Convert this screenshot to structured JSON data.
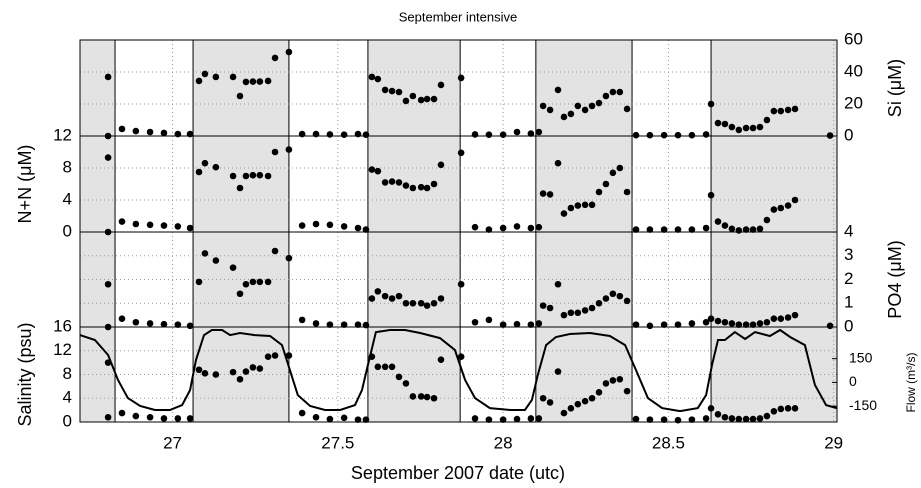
{
  "chart_data": {
    "type": "scatter",
    "title": "September intensive",
    "x_label": "September 2007 date (utc)",
    "xlim": [
      26.72,
      29.01
    ],
    "xticks": [
      27,
      27.5,
      28,
      28.5,
      29
    ],
    "grid": true,
    "color": "#000000",
    "shade_color": "#e3e3e3",
    "shaded_intervals": [
      [
        26.72,
        26.826
      ],
      [
        27.062,
        27.352
      ],
      [
        27.591,
        27.87
      ],
      [
        28.099,
        28.39
      ],
      [
        28.629,
        29.01
      ]
    ],
    "x": [
      26.805,
      26.805,
      26.847,
      26.889,
      26.932,
      26.974,
      27.016,
      27.053,
      27.08,
      27.098,
      27.131,
      27.183,
      27.204,
      27.222,
      27.243,
      27.264,
      27.289,
      27.31,
      27.352,
      27.392,
      27.434,
      27.476,
      27.519,
      27.561,
      27.585,
      27.603,
      27.621,
      27.643,
      27.664,
      27.685,
      27.706,
      27.727,
      27.752,
      27.77,
      27.791,
      27.812,
      27.873,
      27.915,
      27.957,
      28.0,
      28.042,
      28.084,
      28.108,
      28.121,
      28.142,
      28.166,
      28.184,
      28.205,
      28.226,
      28.248,
      28.269,
      28.29,
      28.311,
      28.332,
      28.353,
      28.375,
      28.402,
      28.444,
      28.487,
      28.529,
      28.571,
      28.614,
      28.629,
      28.65,
      28.671,
      28.692,
      28.713,
      28.735,
      28.756,
      28.777,
      28.798,
      28.819,
      28.84,
      28.862,
      28.883,
      28.989
    ],
    "panels": [
      {
        "y_label": "Si (μM)",
        "y_side": "right",
        "ylim": [
          0,
          60
        ],
        "yticks": [
          0,
          20,
          40,
          60
        ],
        "values": [
          36.9,
          0,
          4.4,
          3.1,
          2.5,
          1.9,
          1.2,
          1.2,
          34.4,
          38.8,
          36.9,
          36.9,
          25,
          33.8,
          34,
          34,
          34.4,
          48.8,
          52.5,
          1.2,
          1.2,
          1,
          0.8,
          1.2,
          0.8,
          36.9,
          35.6,
          28.8,
          28.1,
          27.5,
          21.9,
          25,
          22.5,
          23.1,
          23.1,
          31.9,
          36.3,
          1,
          0.8,
          0.8,
          2.5,
          1.5,
          2.5,
          18.8,
          16.3,
          28.8,
          11.9,
          13.8,
          18.8,
          16.3,
          18.8,
          20.6,
          25,
          27.5,
          27.5,
          16.9,
          0.5,
          0.5,
          0.5,
          0.5,
          0.5,
          1,
          20,
          8.1,
          7.5,
          5.6,
          3.8,
          5,
          5,
          5.6,
          10,
          15.6,
          15.6,
          16.3,
          16.9,
          0.3
        ]
      },
      {
        "y_label": "N+N (μM)",
        "y_side": "left",
        "ylim": [
          0,
          12
        ],
        "yticks": [
          0,
          4,
          8,
          12
        ],
        "values": [
          9.3,
          0,
          1.3,
          1,
          0.9,
          0.8,
          0.7,
          0.5,
          7.5,
          8.6,
          8.1,
          7,
          5.5,
          7,
          7.1,
          7.1,
          7,
          10,
          10.3,
          0.8,
          1,
          0.9,
          0.7,
          0.5,
          0.3,
          7.8,
          7.6,
          6.2,
          6.3,
          6.2,
          5.8,
          5.5,
          5.6,
          5.5,
          6,
          8.4,
          9.9,
          0.6,
          0.3,
          0.5,
          0.7,
          0.5,
          0.6,
          4.8,
          4.7,
          8.6,
          2.3,
          3,
          3.3,
          3.4,
          3.4,
          5,
          6,
          7.4,
          8,
          5,
          0.3,
          0.3,
          0.3,
          0.3,
          0.3,
          0.5,
          4.6,
          1.3,
          0.8,
          0.4,
          0.2,
          0.3,
          0.3,
          0.4,
          1.5,
          2.8,
          3,
          3.3,
          4,
          null
        ]
      },
      {
        "y_label": "PO4 (μM)",
        "y_side": "right",
        "ylim": [
          0,
          4
        ],
        "yticks": [
          0,
          1,
          2,
          3,
          4
        ],
        "values": [
          1.8,
          0,
          0.35,
          0.2,
          0.15,
          0.12,
          0.1,
          0.05,
          1.9,
          3.1,
          2.8,
          2.5,
          1.4,
          1.8,
          1.9,
          1.9,
          1.9,
          3.2,
          2.9,
          0.3,
          0.15,
          0.1,
          0.1,
          0.1,
          0.08,
          1.2,
          1.5,
          1.3,
          1.2,
          1.3,
          1,
          1,
          1,
          0.9,
          1,
          1.2,
          1.8,
          0.2,
          0.3,
          0.1,
          0.12,
          0.1,
          0.15,
          0.9,
          0.8,
          1.8,
          0.5,
          0.6,
          0.6,
          0.7,
          0.8,
          1,
          1.2,
          1.4,
          1.3,
          1.1,
          0.1,
          0.05,
          0.1,
          0.1,
          0.15,
          0.2,
          0.35,
          0.25,
          0.2,
          0.15,
          0.1,
          0.1,
          0.1,
          0.15,
          0.2,
          0.35,
          0.35,
          0.4,
          0.5,
          0.05
        ]
      },
      {
        "y_label": "Salinity (psu)",
        "y_side": "left",
        "ylim": [
          0,
          16
        ],
        "yticks": [
          0,
          4,
          8,
          12,
          16
        ],
        "values": [
          10,
          0.8,
          1.5,
          1,
          0.8,
          0.6,
          0.6,
          0.6,
          8.8,
          8.2,
          8,
          8.4,
          7.2,
          8.5,
          9.2,
          9,
          11,
          11.2,
          11.2,
          1.5,
          0.8,
          0.5,
          0.7,
          0.4,
          0.4,
          11,
          9.3,
          9.3,
          9.3,
          7.6,
          6.5,
          4.3,
          4.3,
          4.2,
          4,
          10.5,
          11,
          0.6,
          0.4,
          0.4,
          0.5,
          0.6,
          0.6,
          4,
          3.3,
          8.5,
          1.5,
          2.3,
          3,
          3.5,
          4,
          5,
          6.5,
          7,
          7.2,
          5.2,
          0.5,
          0.4,
          0.4,
          0.3,
          0.4,
          0.6,
          2.3,
          1.3,
          0.8,
          0.6,
          0.5,
          0.5,
          0.5,
          0.6,
          1,
          1.8,
          2.2,
          2.3,
          2.3,
          null
        ],
        "y2_label": "Flow (m³/s)",
        "y2lim": [
          -250,
          350
        ],
        "y2ticks": [
          -150,
          0,
          150
        ],
        "line": {
          "x": [
            26.72,
            26.765,
            26.805,
            26.835,
            26.865,
            26.902,
            26.947,
            26.992,
            27.029,
            27.053,
            27.071,
            27.095,
            27.119,
            27.15,
            27.174,
            27.204,
            27.249,
            27.295,
            27.331,
            27.355,
            27.379,
            27.416,
            27.461,
            27.507,
            27.552,
            27.573,
            27.591,
            27.615,
            27.658,
            27.703,
            27.749,
            27.809,
            27.854,
            27.885,
            27.915,
            27.96,
            28.021,
            28.066,
            28.087,
            28.105,
            28.13,
            28.16,
            28.202,
            28.263,
            28.323,
            28.369,
            28.402,
            28.438,
            28.481,
            28.535,
            28.589,
            28.614,
            28.632,
            28.65,
            28.671,
            28.701,
            28.732,
            28.762,
            28.807,
            28.838,
            28.868,
            28.913,
            28.943,
            28.977,
            29.01
          ],
          "values": [
            299,
            268,
            173,
            15,
            -99,
            -149,
            -174,
            -174,
            -143,
            -48,
            142,
            299,
            331,
            331,
            299,
            312,
            299,
            293,
            236,
            78,
            -80,
            -149,
            -174,
            -174,
            -143,
            -48,
            110,
            318,
            331,
            331,
            312,
            280,
            205,
            15,
            -99,
            -162,
            -174,
            -174,
            -111,
            47,
            236,
            287,
            306,
            312,
            293,
            236,
            78,
            -99,
            -162,
            -181,
            -162,
            -80,
            110,
            268,
            268,
            318,
            274,
            318,
            293,
            331,
            287,
            236,
            -16,
            -143,
            -162
          ]
        }
      }
    ]
  }
}
